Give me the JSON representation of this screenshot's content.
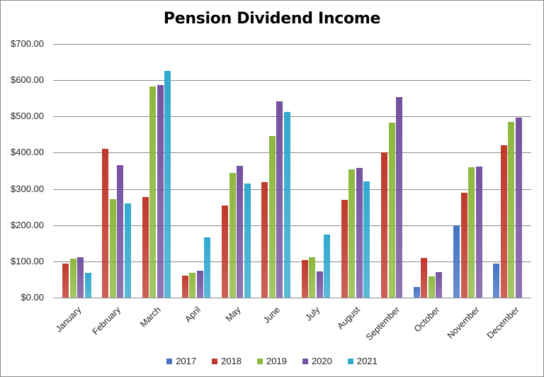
{
  "chart_data": {
    "type": "bar",
    "title": "Pension Dividend Income",
    "xlabel": "",
    "ylabel": "",
    "ylim": [
      0,
      700
    ],
    "yticks": [
      "$0.00",
      "$100.00",
      "$200.00",
      "$300.00",
      "$400.00",
      "$500.00",
      "$600.00",
      "$700.00"
    ],
    "grid": true,
    "legend_position": "bottom",
    "categories": [
      "January",
      "February",
      "March",
      "April",
      "May",
      "June",
      "July",
      "August",
      "September",
      "October",
      "November",
      "December"
    ],
    "series": [
      {
        "name": "2017",
        "color": "#4472c4",
        "values": [
          0,
          0,
          0,
          0,
          0,
          0,
          0,
          0,
          0,
          29,
          200,
          93
        ]
      },
      {
        "name": "2018",
        "color": "#c0392b",
        "values": [
          93,
          410,
          278,
          60,
          254,
          319,
          103,
          269,
          400,
          109,
          289,
          421
        ]
      },
      {
        "name": "2019",
        "color": "#8db83d",
        "values": [
          107,
          271,
          582,
          68,
          345,
          446,
          111,
          353,
          482,
          58,
          359,
          484
        ]
      },
      {
        "name": "2020",
        "color": "#7452a0",
        "values": [
          111,
          365,
          587,
          74,
          363,
          542,
          72,
          357,
          553,
          70,
          361,
          496
        ]
      },
      {
        "name": "2021",
        "color": "#31a9cf",
        "values": [
          68,
          261,
          625,
          166,
          314,
          512,
          174,
          320,
          0,
          0,
          0,
          0
        ]
      }
    ]
  }
}
